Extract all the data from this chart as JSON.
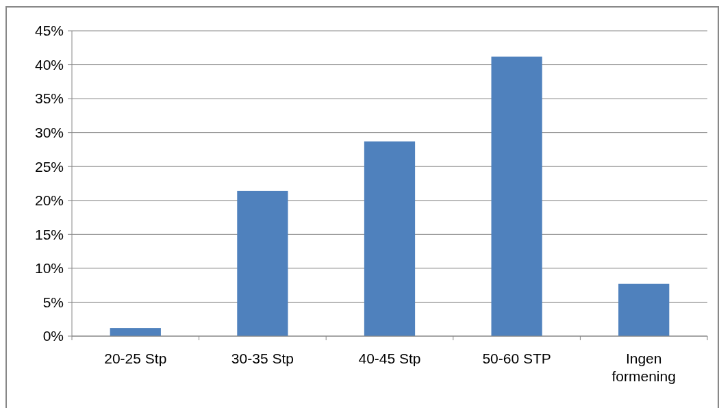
{
  "chart_data": {
    "type": "bar",
    "categories": [
      "20-25 Stp",
      "30-35 Stp",
      "40-45 Stp",
      "50-60 STP",
      "Ingen formening"
    ],
    "values": [
      1.2,
      21.4,
      28.7,
      41.2,
      7.7
    ],
    "color": "#4f81bd",
    "ylim": [
      0,
      45
    ],
    "yticks": [
      {
        "value": 0,
        "label": "0%"
      },
      {
        "value": 5,
        "label": "5%"
      },
      {
        "value": 10,
        "label": "10%"
      },
      {
        "value": 15,
        "label": "15%"
      },
      {
        "value": 20,
        "label": "20%"
      },
      {
        "value": 25,
        "label": "25%"
      },
      {
        "value": 30,
        "label": "30%"
      },
      {
        "value": 35,
        "label": "35%"
      },
      {
        "value": 40,
        "label": "40%"
      },
      {
        "value": 45,
        "label": "45%"
      }
    ],
    "grid": "y"
  }
}
